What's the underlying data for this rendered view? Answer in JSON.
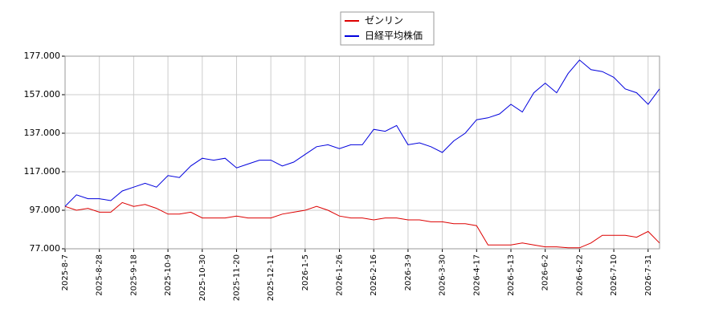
{
  "chart_data": {
    "type": "line",
    "categories": [
      "2025-8-7",
      null,
      null,
      "2025-8-28",
      null,
      null,
      "2025-9-18",
      null,
      null,
      "2025-10-9",
      null,
      null,
      "2025-10-30",
      null,
      null,
      "2025-11-20",
      null,
      null,
      "2025-12-11",
      null,
      null,
      "2026-1-5",
      null,
      null,
      "2026-1-26",
      null,
      null,
      "2026-2-16",
      null,
      null,
      "2026-3-9",
      null,
      null,
      "2026-3-30",
      null,
      null,
      "2026-4-17",
      null,
      null,
      "2026-5-13",
      null,
      null,
      "2026-6-2",
      null,
      null,
      "2026-6-22",
      null,
      null,
      "2026-7-10",
      null,
      null,
      "2026-7-31",
      null
    ],
    "series": [
      {
        "name": "ゼンリン",
        "color": "#dd0000",
        "values": [
          99,
          97,
          98,
          96,
          96,
          101,
          99,
          100,
          98,
          95,
          95,
          96,
          93,
          93,
          93,
          94,
          93,
          93,
          93,
          95,
          96,
          97,
          99,
          97,
          94,
          93,
          93,
          92,
          93,
          93,
          92,
          92,
          91,
          91,
          90,
          90,
          89,
          79,
          79,
          79,
          80,
          79,
          78,
          78,
          77.5,
          77.5,
          80,
          84,
          84,
          84,
          83,
          86,
          80
        ]
      },
      {
        "name": "日経平均株価",
        "color": "#0000dd",
        "values": [
          99,
          105,
          103,
          103,
          102,
          107,
          109,
          111,
          109,
          115,
          114,
          120,
          124,
          123,
          124,
          119,
          121,
          123,
          123,
          120,
          122,
          126,
          130,
          131,
          129,
          131,
          131,
          139,
          138,
          141,
          131,
          132,
          130,
          127,
          133,
          137,
          144,
          145,
          147,
          152,
          148,
          158,
          163,
          158,
          168,
          175,
          170,
          169,
          166,
          160,
          158,
          152,
          160
        ]
      }
    ],
    "ylim": [
      77,
      177
    ],
    "yticks": [
      {
        "value": 77,
        "label": "77.000"
      },
      {
        "value": 97,
        "label": "97.000"
      },
      {
        "value": 117,
        "label": "117.000"
      },
      {
        "value": 137,
        "label": "137.000"
      },
      {
        "value": 157,
        "label": "157.000"
      },
      {
        "value": 177,
        "label": "177.000"
      }
    ],
    "grid": true
  }
}
